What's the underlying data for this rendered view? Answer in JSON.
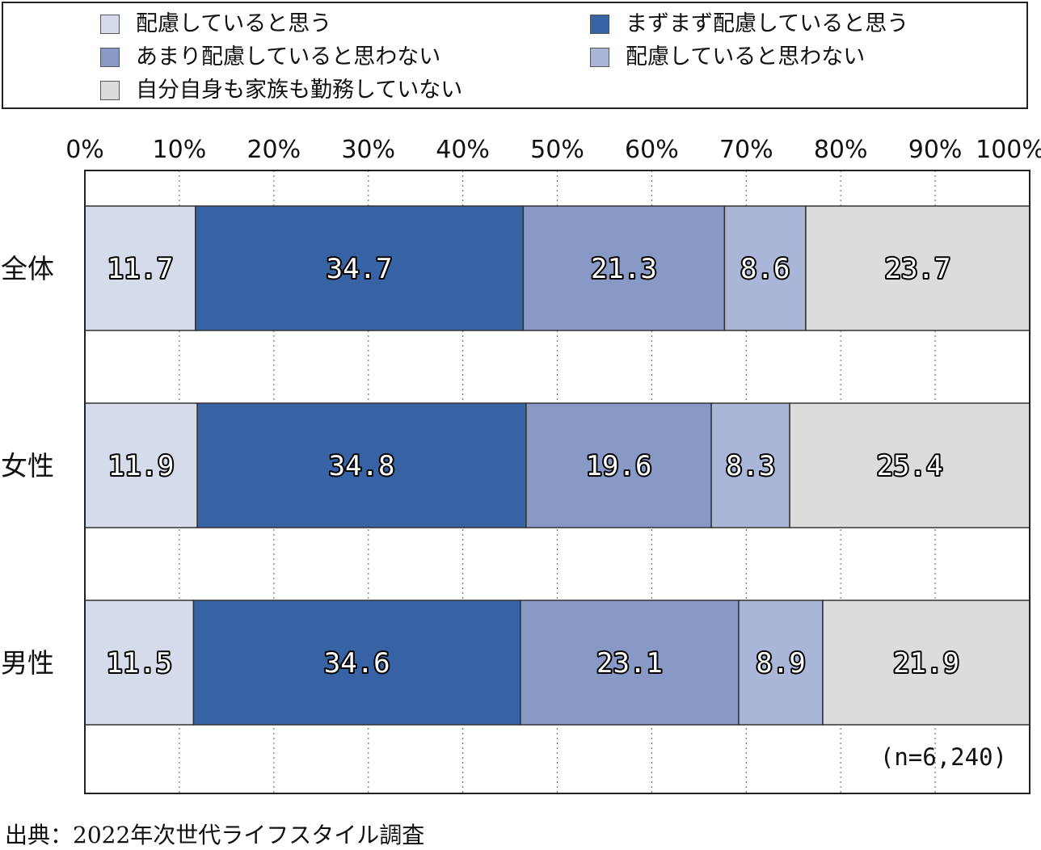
{
  "chart_data": {
    "type": "bar",
    "orientation": "horizontal",
    "stacked": true,
    "categories": [
      "全体",
      "女性",
      "男性"
    ],
    "series": [
      {
        "name": "配慮していると思う",
        "color": "#d6dbeb",
        "values": [
          11.7,
          11.9,
          11.5
        ]
      },
      {
        "name": "まずまず配慮していると思う",
        "color": "#3762a3",
        "values": [
          34.7,
          34.8,
          34.6
        ]
      },
      {
        "name": "あまり配慮していると思わない",
        "color": "#8799c4",
        "values": [
          21.3,
          19.6,
          23.1
        ]
      },
      {
        "name": "配慮していると思わない",
        "color": "#aab6d8",
        "values": [
          8.6,
          8.3,
          8.9
        ]
      },
      {
        "name": "自分自身も家族も勤務していない",
        "color": "#dcdcdc",
        "values": [
          23.7,
          25.4,
          21.9
        ]
      }
    ],
    "value_labels": [
      [
        "11.7",
        "34.7",
        "21.3",
        "8.6",
        "23.7"
      ],
      [
        "11.9",
        "34.8",
        "19.6",
        "8.3",
        "25.4"
      ],
      [
        "11.5",
        "34.6",
        "23.1",
        "8.9",
        "21.9"
      ]
    ],
    "x_ticks": [
      "0%",
      "10%",
      "20%",
      "30%",
      "40%",
      "50%",
      "60%",
      "70%",
      "80%",
      "90%",
      "100%"
    ],
    "xlim": [
      0,
      100
    ],
    "grid": "vertical dotted",
    "legend_position": "top",
    "note": "(n=6,240)",
    "source": "出典：2022年次世代ライフスタイル調査"
  }
}
